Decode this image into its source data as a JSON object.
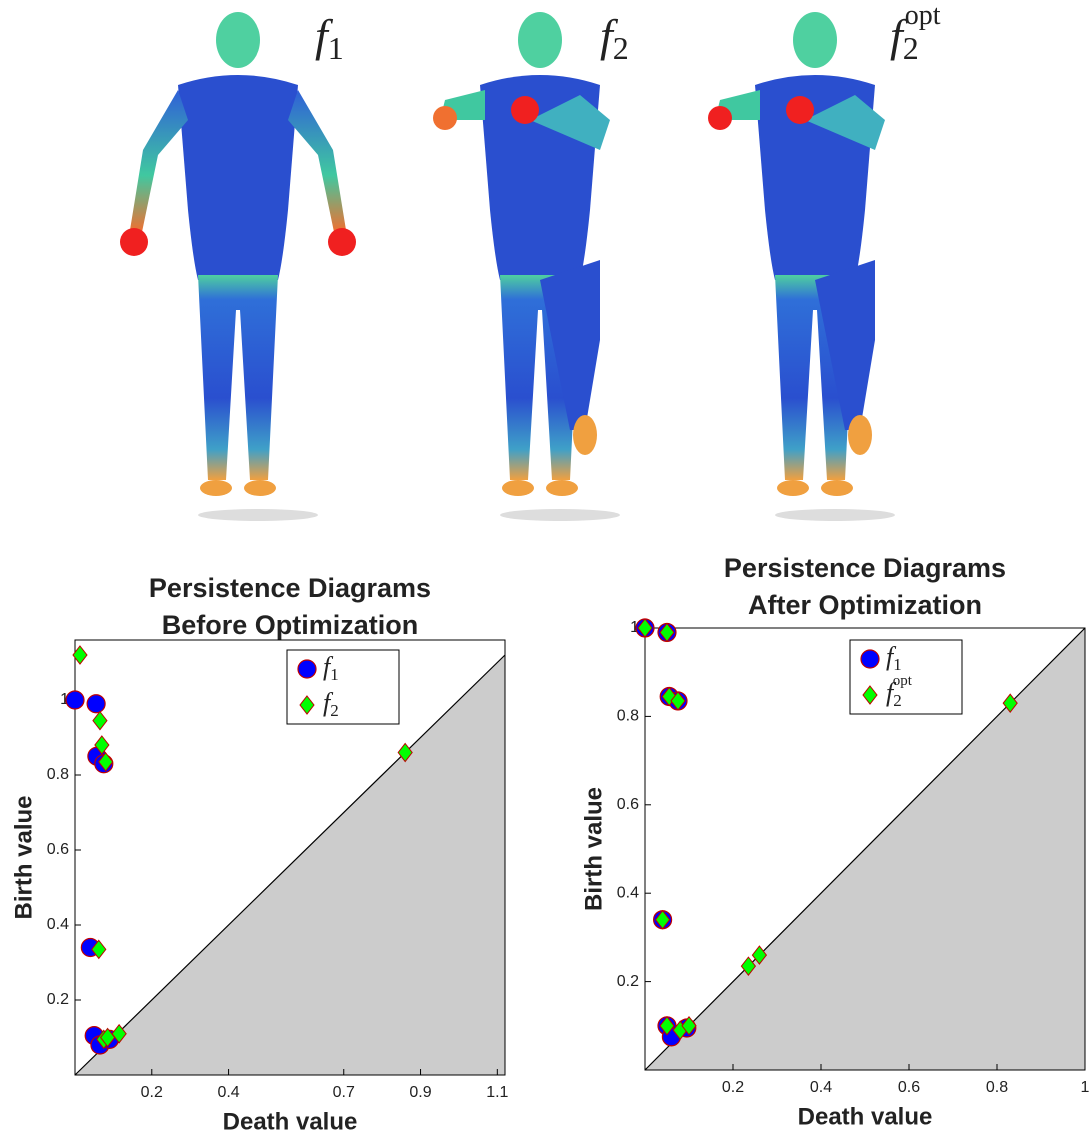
{
  "panels": [
    {
      "label": "f",
      "subscript": "1"
    },
    {
      "label": "f",
      "subscript": "2"
    },
    {
      "label": "f",
      "subscript": "2",
      "superscript": "opt"
    }
  ],
  "chart_data": [
    {
      "type": "scatter",
      "title": [
        "Persistence Diagrams",
        "Before Optimization"
      ],
      "x_label": "Death value",
      "y_label": "Birth value",
      "xlim": [
        0,
        1.12
      ],
      "ylim": [
        0,
        1.16
      ],
      "xticks": [
        0.2,
        0.4,
        0.7,
        0.9,
        1.1
      ],
      "yticks": [
        0.2,
        0.4,
        0.6,
        0.8,
        1
      ],
      "diagonal": true,
      "legend": "upper right",
      "series": [
        {
          "name": "f",
          "subscript": "1",
          "marker": "circle",
          "color": "#0000ff",
          "x": [
            0,
            0.055,
            0.057,
            0.075,
            0.04,
            0.05,
            0.065,
            0.09
          ],
          "values": [
            1,
            0.99,
            0.85,
            0.83,
            0.34,
            0.105,
            0.08,
            0.095
          ]
        },
        {
          "name": "f",
          "subscript": "2",
          "marker": "diamond",
          "color": "#00ff00",
          "x": [
            0.013,
            0.065,
            0.07,
            0.08,
            0.062,
            0.075,
            0.085,
            0.115,
            0.86
          ],
          "values": [
            1.12,
            0.945,
            0.88,
            0.835,
            0.335,
            0.095,
            0.1,
            0.11,
            0.86
          ]
        }
      ]
    },
    {
      "type": "scatter",
      "title": [
        "Persistence Diagrams",
        "After Optimization"
      ],
      "x_label": "Death value",
      "y_label": "Birth value",
      "xlim": [
        0,
        1
      ],
      "ylim": [
        0,
        1
      ],
      "xticks": [
        0.2,
        0.4,
        0.6,
        0.8,
        1
      ],
      "yticks": [
        0.2,
        0.4,
        0.6,
        0.8,
        1
      ],
      "diagonal": true,
      "legend": "upper right",
      "series": [
        {
          "name": "f",
          "subscript": "1",
          "marker": "circle",
          "color": "#0000ff",
          "x": [
            0,
            0.05,
            0.055,
            0.075,
            0.04,
            0.05,
            0.06,
            0.095
          ],
          "values": [
            1,
            0.99,
            0.845,
            0.835,
            0.34,
            0.1,
            0.075,
            0.095
          ]
        },
        {
          "name": "f",
          "subscript": "2",
          "superscript": "opt",
          "marker": "diamond",
          "color": "#00ff00",
          "x": [
            0,
            0.05,
            0.055,
            0.075,
            0.04,
            0.05,
            0.08,
            0.1,
            0.235,
            0.26,
            0.83
          ],
          "values": [
            1,
            0.99,
            0.845,
            0.835,
            0.34,
            0.1,
            0.09,
            0.1,
            0.235,
            0.26,
            0.83
          ]
        }
      ]
    }
  ]
}
